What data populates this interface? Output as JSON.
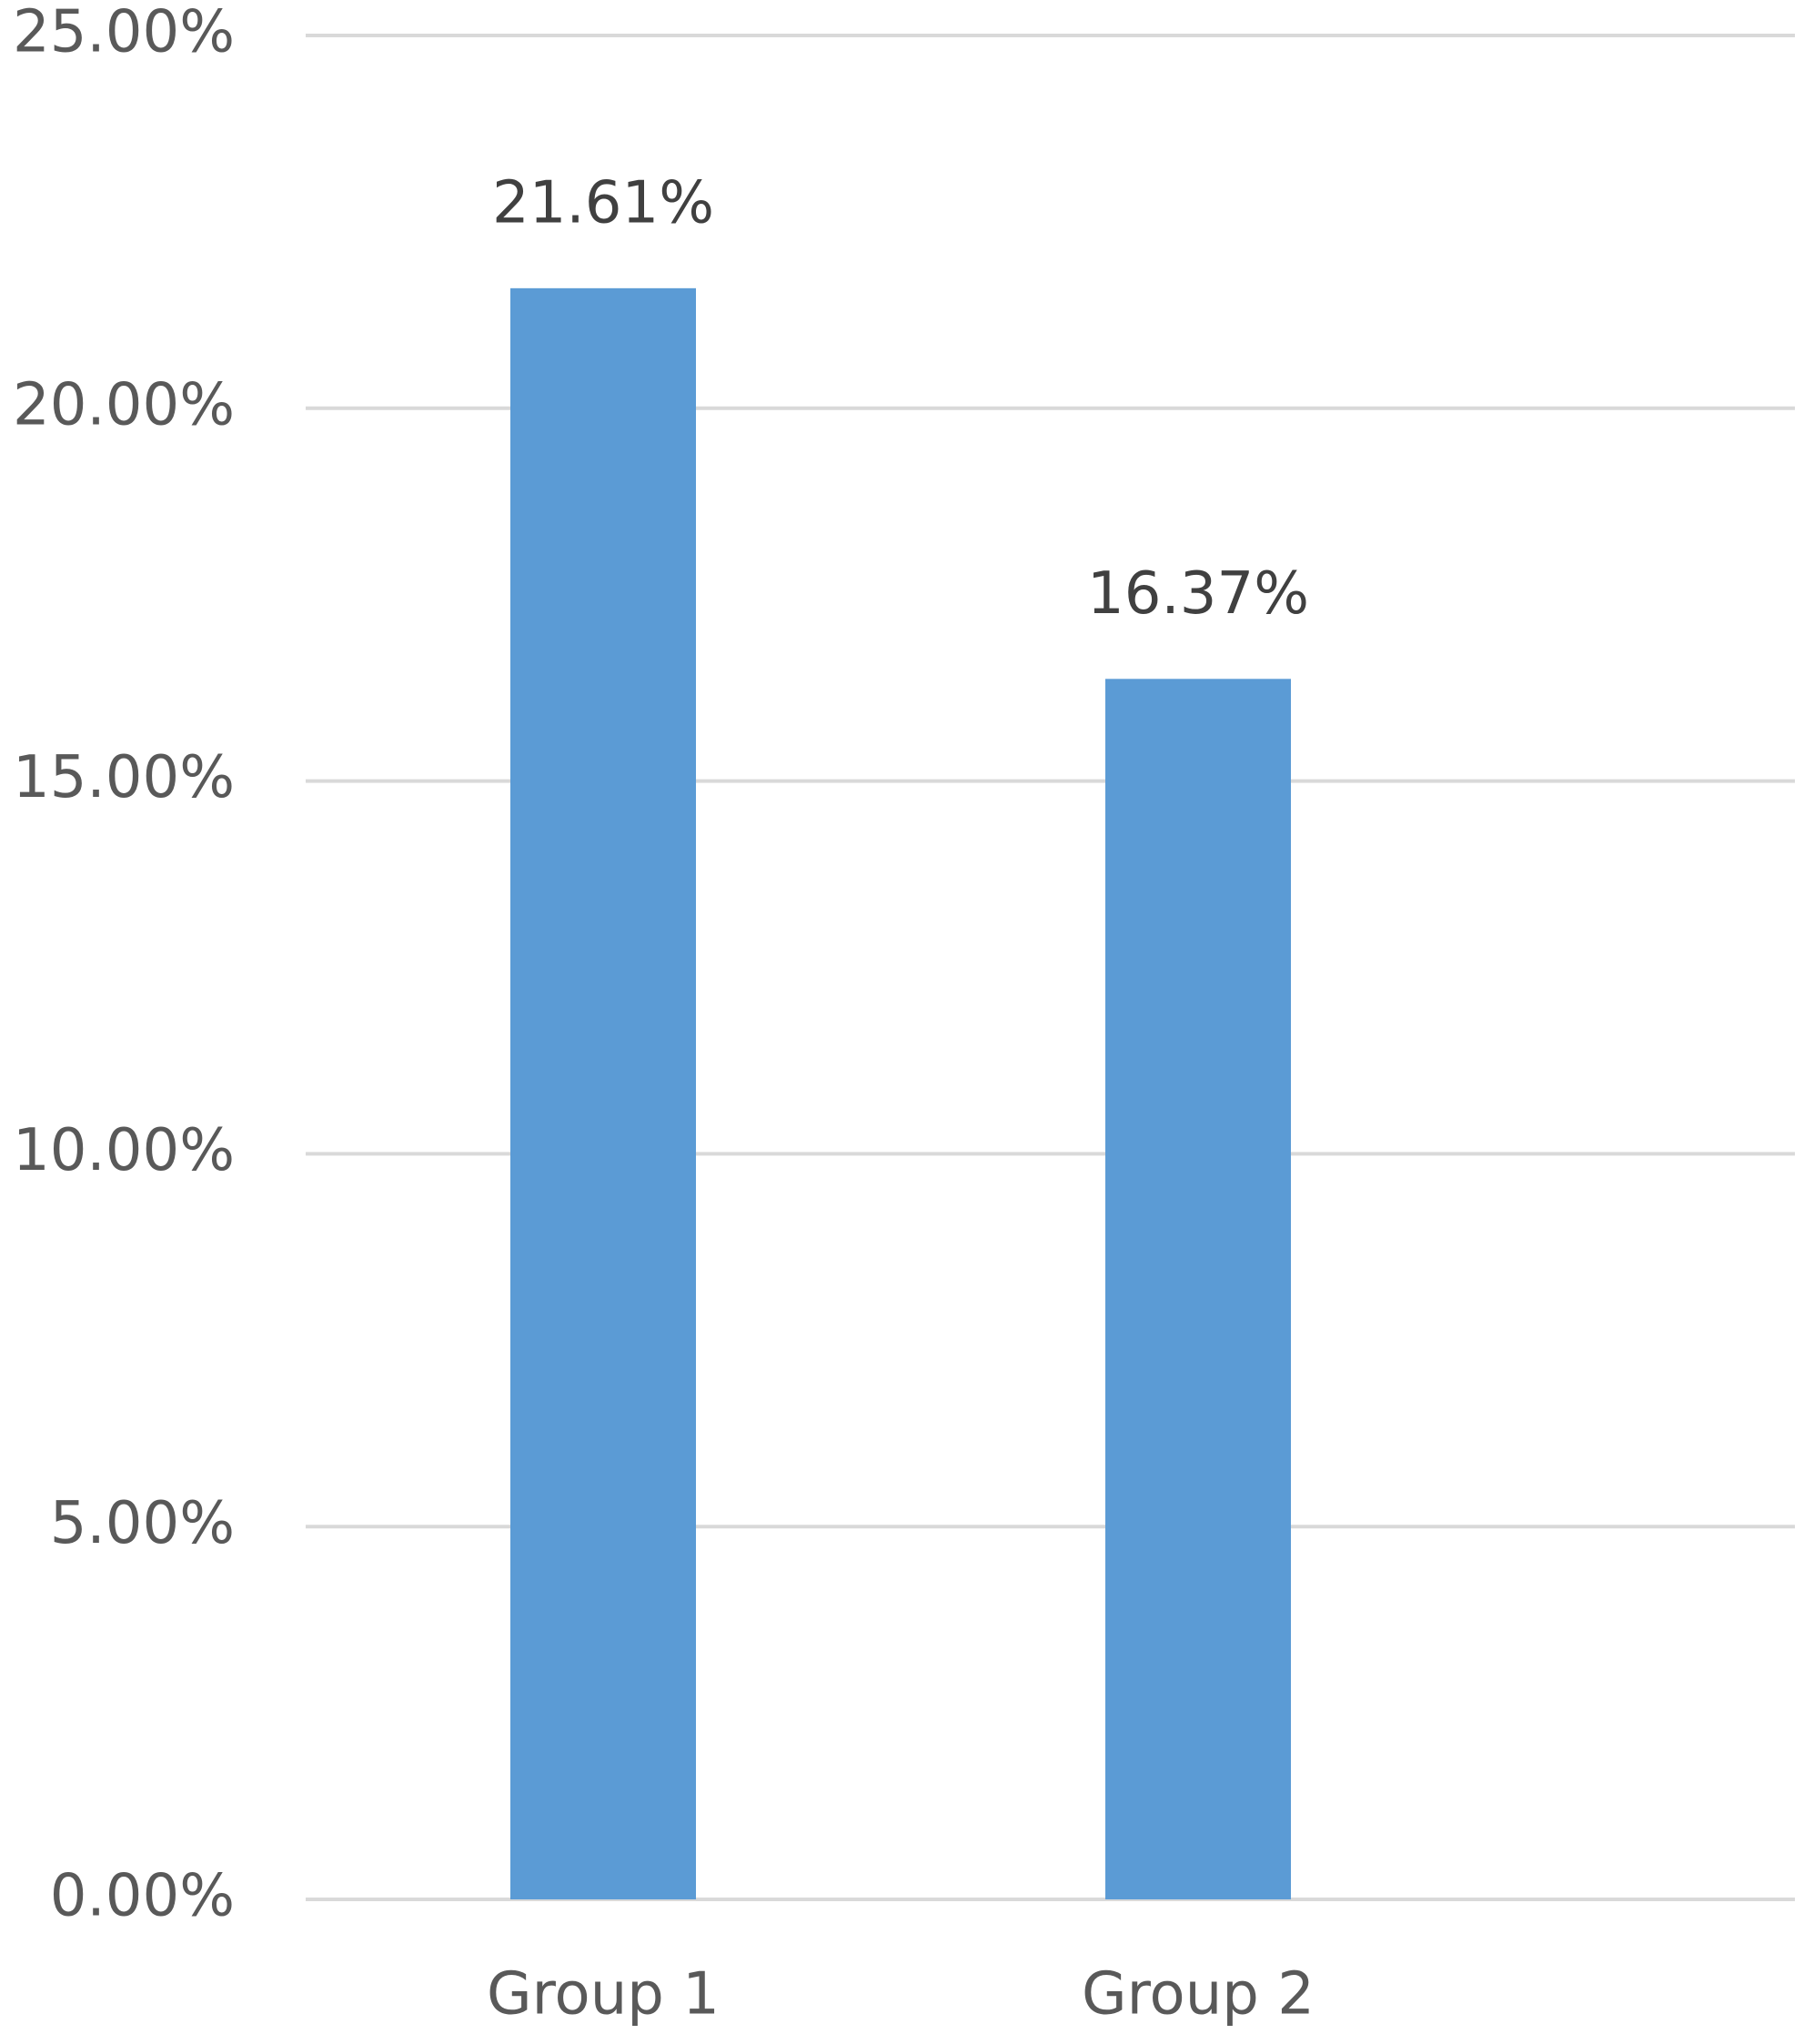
{
  "chart_data": {
    "type": "bar",
    "categories": [
      "Group 1",
      "Group 2"
    ],
    "values": [
      21.61,
      16.37
    ],
    "value_labels": [
      "21.61%",
      "16.37%"
    ],
    "color": "#5b9bd5",
    "ylim": [
      0,
      25
    ],
    "yticks": [
      {
        "value": 0,
        "label": "0.00%"
      },
      {
        "value": 5,
        "label": "5.00%"
      },
      {
        "value": 10,
        "label": "10.00%"
      },
      {
        "value": 15,
        "label": "15.00%"
      },
      {
        "value": 20,
        "label": "20.00%"
      },
      {
        "value": 25,
        "label": "25.00%"
      }
    ],
    "grid": true
  }
}
